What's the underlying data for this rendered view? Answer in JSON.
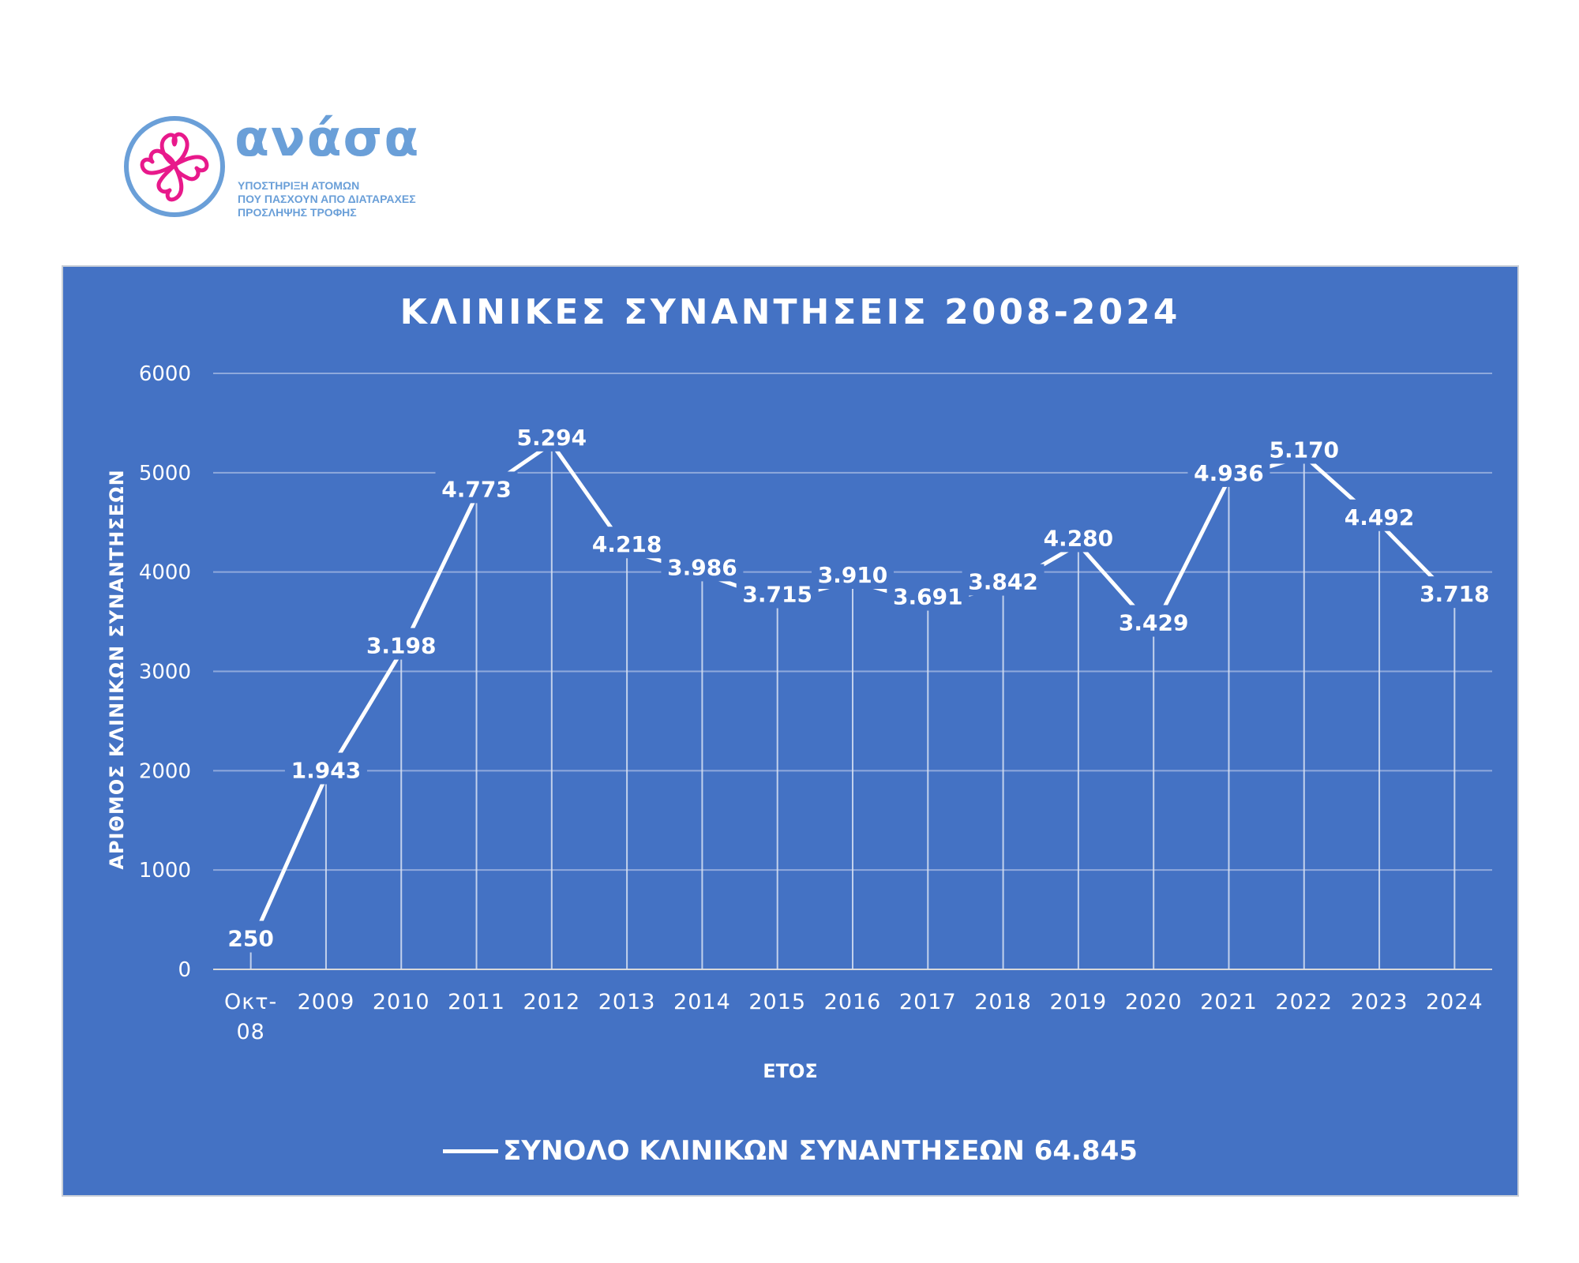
{
  "logo": {
    "wordmark": "ανάσα",
    "tagline": [
      "ΥΠΟΣΤΗΡΙΞΗ ΑΤΟΜΩΝ",
      "ΠΟΥ ΠΑΣΧΟΥΝ ΑΠΟ ΔΙΑΤΑΡΑΧΕΣ",
      "ΠΡΟΣΛΗΨΗΣ ΤΡΟΦΗΣ"
    ],
    "ring_color": "#6a9fd8",
    "flower_color": "#e8198b"
  },
  "chart_data": {
    "type": "line",
    "title": "ΚΛΙΝΙΚΕΣ ΣΥΝΑΝΤΗΣΕΙΣ 2008-2024",
    "xlabel": "ΕΤΟΣ",
    "ylabel": "ΑΡΙΘΜΟΣ ΚΛΙΝΙΚΩΝ ΣΥΝΑΝΤΗΣΕΩΝ",
    "categories": [
      [
        "Οκτ-",
        "08"
      ],
      "2009",
      "2010",
      "2011",
      "2012",
      "2013",
      "2014",
      "2015",
      "2016",
      "2017",
      "2018",
      "2019",
      "2020",
      "2021",
      "2022",
      "2023",
      "2024"
    ],
    "series": [
      {
        "name": "ΣΥΝΟΛΟ ΚΛΙΝΙΚΩΝ ΣΥΝΑΝΤΗΣΕΩΝ 64.845",
        "values": [
          250,
          1943,
          3198,
          4773,
          5294,
          4218,
          3986,
          3715,
          3910,
          3691,
          3842,
          4280,
          3429,
          4936,
          5170,
          4492,
          3718
        ],
        "labels": [
          "250",
          "1.943",
          "3.198",
          "4.773",
          "5.294",
          "4.218",
          "3.986",
          "3.715",
          "3.910",
          "3.691",
          "3.842",
          "4.280",
          "3.429",
          "4.936",
          "5.170",
          "4.492",
          "3.718"
        ],
        "color": "#ffffff"
      }
    ],
    "ylim": [
      0,
      6000
    ],
    "yticks": [
      "0",
      "1000",
      "2000",
      "3000",
      "4000",
      "5000",
      "6000"
    ],
    "grid": true,
    "legend_position": "bottom",
    "background": "#4472c4"
  }
}
